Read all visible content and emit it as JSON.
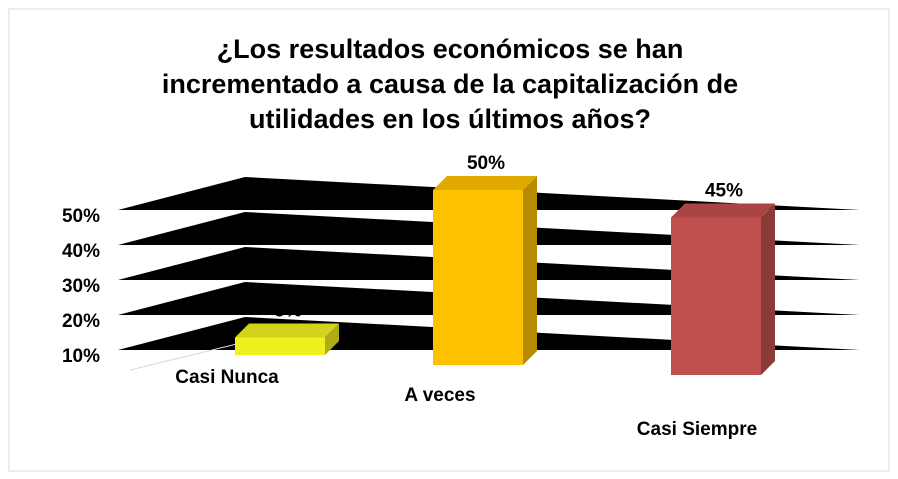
{
  "chart_data": {
    "type": "bar3d",
    "title": "¿Los resultados económicos se han incrementado a causa de la capitalización de utilidades en los últimos años?",
    "categories": [
      "Casi Nunca",
      "A veces",
      "Casi Siempre"
    ],
    "values": [
      5,
      50,
      45
    ],
    "value_labels": [
      "5%",
      "50%",
      "45%"
    ],
    "colors": [
      "#f0f020",
      "#ffc000",
      "#c0504d"
    ],
    "ylim": [
      0,
      50
    ],
    "yticks": [
      {
        "value": 10,
        "label": "10%"
      },
      {
        "value": 20,
        "label": "20%"
      },
      {
        "value": 30,
        "label": "30%"
      },
      {
        "value": 40,
        "label": "40%"
      },
      {
        "value": 50,
        "label": "50%"
      }
    ],
    "grid": true
  }
}
